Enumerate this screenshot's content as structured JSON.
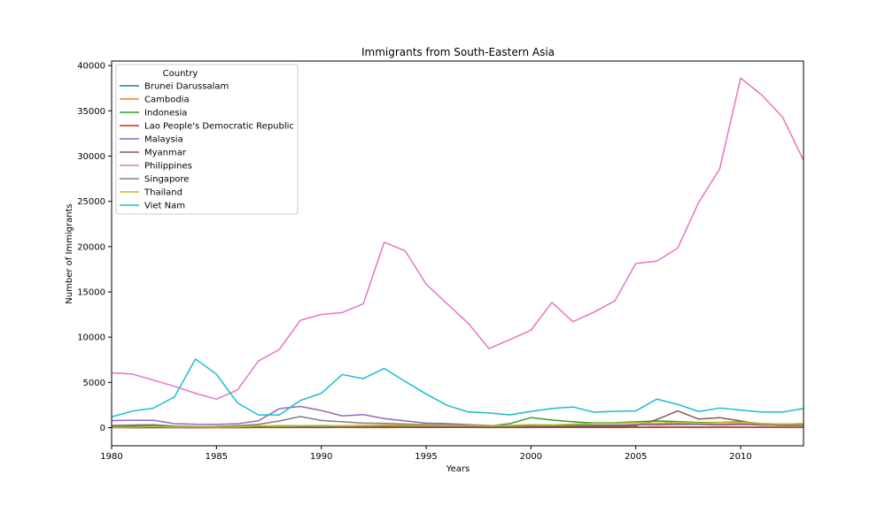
{
  "chart_data": {
    "type": "line",
    "title": "Immigrants from South-Eastern Asia",
    "xlabel": "Years",
    "ylabel": "Number of Immigrants",
    "xlim": [
      1980,
      2013
    ],
    "ylim": [
      -2000,
      40500
    ],
    "xticks": [
      1980,
      1985,
      1990,
      1995,
      2000,
      2005,
      2010
    ],
    "yticks": [
      0,
      5000,
      10000,
      15000,
      20000,
      25000,
      30000,
      35000,
      40000
    ],
    "grid": false,
    "legend": {
      "title": "Country",
      "placement": "top-left"
    },
    "x": [
      1980,
      1981,
      1982,
      1983,
      1984,
      1985,
      1986,
      1987,
      1988,
      1989,
      1990,
      1991,
      1992,
      1993,
      1994,
      1995,
      1996,
      1997,
      1998,
      1999,
      2000,
      2001,
      2002,
      2003,
      2004,
      2005,
      2006,
      2007,
      2008,
      2009,
      2010,
      2011,
      2012,
      2013
    ],
    "series": [
      {
        "name": "Brunei Darussalam",
        "color": "#1f77b4",
        "values": [
          79,
          6,
          8,
          2,
          4,
          12,
          13,
          21,
          33,
          65,
          58,
          30,
          12,
          27,
          21,
          15,
          35,
          21,
          17,
          25,
          20,
          44,
          30,
          27,
          33,
          54,
          64,
          49,
          42,
          52,
          55,
          43,
          31,
          28
        ]
      },
      {
        "name": "Cambodia",
        "color": "#ff7f0e",
        "values": [
          12,
          19,
          26,
          33,
          10,
          7,
          8,
          17,
          21,
          25,
          35,
          54,
          84,
          124,
          159,
          140,
          111,
          90,
          78,
          108,
          168,
          222,
          302,
          250,
          300,
          334,
          280,
          357,
          404,
          373,
          452,
          330,
          240,
          280
        ]
      },
      {
        "name": "Indonesia",
        "color": "#2ca02c",
        "values": [
          186,
          178,
          252,
          115,
          123,
          100,
          127,
          176,
          205,
          225,
          210,
          205,
          250,
          245,
          235,
          220,
          230,
          210,
          160,
          450,
          1110,
          850,
          650,
          520,
          550,
          650,
          730,
          680,
          580,
          580,
          660,
          450,
          380,
          450
        ]
      },
      {
        "name": "Lao People's Democratic Republic",
        "color": "#d62728",
        "values": [
          11,
          6,
          16,
          16,
          7,
          17,
          21,
          28,
          12,
          20,
          15,
          25,
          30,
          20,
          25,
          28,
          30,
          35,
          25,
          20,
          25,
          30,
          40,
          35,
          30,
          40,
          35,
          60,
          55,
          60,
          55,
          50,
          40,
          45
        ]
      },
      {
        "name": "Malaysia",
        "color": "#9467bd",
        "values": [
          786,
          816,
          813,
          448,
          384,
          374,
          425,
          757,
          2100,
          2350,
          1900,
          1300,
          1450,
          1000,
          750,
          500,
          450,
          350,
          250,
          230,
          300,
          300,
          200,
          250,
          300,
          350,
          400,
          450,
          400,
          350,
          400,
          300,
          250,
          250
        ]
      },
      {
        "name": "Myanmar",
        "color": "#8c564b",
        "values": [
          80,
          62,
          46,
          31,
          41,
          23,
          18,
          26,
          30,
          40,
          45,
          50,
          55,
          60,
          55,
          60,
          65,
          70,
          60,
          65,
          80,
          110,
          130,
          140,
          160,
          200,
          900,
          1850,
          950,
          1100,
          750,
          300,
          250,
          250
        ]
      },
      {
        "name": "Philippines",
        "color": "#e377c2",
        "values": [
          6051,
          5921,
          5249,
          4562,
          3801,
          3150,
          4166,
          7360,
          8639,
          11865,
          12509,
          12718,
          13670,
          20479,
          19532,
          15864,
          13692,
          11549,
          8735,
          9734,
          10763,
          13836,
          11707,
          12758,
          14004,
          18139,
          18400,
          19837,
          24887,
          28573,
          38617,
          36765,
          34315,
          29544
        ]
      },
      {
        "name": "Singapore",
        "color": "#7f7f7f",
        "values": [
          241,
          301,
          337,
          169,
          128,
          139,
          205,
          372,
          739,
          1235,
          800,
          650,
          500,
          480,
          400,
          350,
          300,
          250,
          200,
          200,
          200,
          250,
          250,
          280,
          300,
          350,
          350,
          350,
          350,
          300,
          350,
          300,
          250,
          250
        ]
      },
      {
        "name": "Thailand",
        "color": "#bcbd22",
        "values": [
          56,
          53,
          113,
          65,
          82,
          66,
          78,
          205,
          166,
          221,
          250,
          200,
          250,
          300,
          280,
          250,
          220,
          250,
          200,
          250,
          350,
          300,
          400,
          450,
          500,
          550,
          500,
          600,
          500,
          550,
          600,
          450,
          400,
          450
        ]
      },
      {
        "name": "Viet Nam",
        "color": "#17becf",
        "values": [
          1191,
          1829,
          2162,
          3404,
          7583,
          5907,
          2741,
          1406,
          1411,
          3004,
          3801,
          5870,
          5416,
          6547,
          5105,
          3723,
          2462,
          1752,
          1631,
          1419,
          1803,
          2117,
          2291,
          1713,
          1816,
          1852,
          3153,
          2574,
          1784,
          2171,
          1942,
          1723,
          1731,
          2112
        ]
      }
    ]
  }
}
